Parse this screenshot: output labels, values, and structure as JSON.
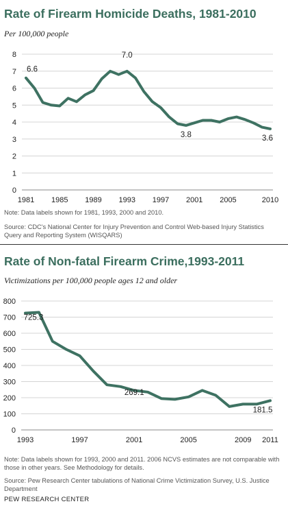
{
  "chart_data": [
    {
      "type": "line",
      "title": "Rate of Firearm Homicide Deaths, 1981-2010",
      "subtitle": "Per 100,000 people",
      "x": [
        1981,
        1982,
        1983,
        1984,
        1985,
        1986,
        1987,
        1988,
        1989,
        1990,
        1991,
        1992,
        1993,
        1994,
        1995,
        1996,
        1997,
        1998,
        1999,
        2000,
        2001,
        2002,
        2003,
        2004,
        2005,
        2006,
        2007,
        2008,
        2009,
        2010
      ],
      "series": [
        {
          "values": [
            6.6,
            6.0,
            5.15,
            5.0,
            4.95,
            5.4,
            5.2,
            5.6,
            5.85,
            6.55,
            7.0,
            6.8,
            7.0,
            6.6,
            5.8,
            5.2,
            4.85,
            4.3,
            3.9,
            3.8,
            3.95,
            4.1,
            4.1,
            4.0,
            4.2,
            4.3,
            4.15,
            3.95,
            3.7,
            3.6
          ]
        }
      ],
      "ylim": [
        0,
        8
      ],
      "yticks": [
        "0",
        "1",
        "2",
        "3",
        "4",
        "5",
        "6",
        "7",
        "8"
      ],
      "xtick_years": [
        1981,
        1985,
        1989,
        1993,
        1997,
        2001,
        2005,
        2010
      ],
      "xticks": [
        "1981",
        "1985",
        "1989",
        "1993",
        "1997",
        "2001",
        "2005",
        "2010"
      ],
      "data_labels": [
        {
          "x": 1981,
          "y": 6.6,
          "text": "6.6"
        },
        {
          "x": 1993,
          "y": 7.0,
          "text": "7.0"
        },
        {
          "x": 2000,
          "y": 3.8,
          "text": "3.8"
        },
        {
          "x": 2010,
          "y": 3.6,
          "text": "3.6"
        }
      ],
      "grid": "horizontal",
      "line_color": "#3e7262",
      "note": "Note: Data labels shown for 1981, 1993, 2000 and 2010.",
      "source": "Source: CDC's National Center for Injury Prevention and Control Web-based Injury Statistics Query and Reporting System (WISQARS)"
    },
    {
      "type": "line",
      "title": "Rate of Non-fatal Firearm Crime,1993-2011",
      "subtitle": "Victimizations per 100,000 people ages 12 and older",
      "x": [
        1993,
        1994,
        1995,
        1996,
        1997,
        1998,
        1999,
        2000,
        2001,
        2002,
        2003,
        2004,
        2005,
        2006,
        2007,
        2008,
        2009,
        2010,
        2011
      ],
      "series": [
        {
          "values": [
            725.3,
            730,
            550,
            500,
            460,
            365,
            280,
            269.1,
            245,
            235,
            195,
            190,
            205,
            245,
            215,
            145,
            160,
            160,
            181.5
          ]
        }
      ],
      "ylim": [
        0,
        800
      ],
      "yticks": [
        "0",
        "100",
        "200",
        "300",
        "400",
        "500",
        "600",
        "700",
        "800"
      ],
      "xtick_years": [
        1993,
        1997,
        2001,
        2005,
        2009,
        2011
      ],
      "xticks": [
        "1993",
        "1997",
        "2001",
        "2005",
        "2009",
        "2011"
      ],
      "data_labels": [
        {
          "x": 1993,
          "y": 725.3,
          "text": "725.3"
        },
        {
          "x": 2000,
          "y": 269.1,
          "text": "269.1"
        },
        {
          "x": 2011,
          "y": 181.5,
          "text": "181.5"
        }
      ],
      "grid": "horizontal",
      "line_color": "#3e7262",
      "note": "Note: Data labels shown for 1993, 2000 and 2011. 2006 NCVS estimates are not comparable with those in other years. See Methodology for details.",
      "source": "Source: Pew Research Center tabulations of National Crime Victimization Survey, U.S. Justice Department"
    }
  ],
  "footer": "PEW RESEARCH CENTER"
}
